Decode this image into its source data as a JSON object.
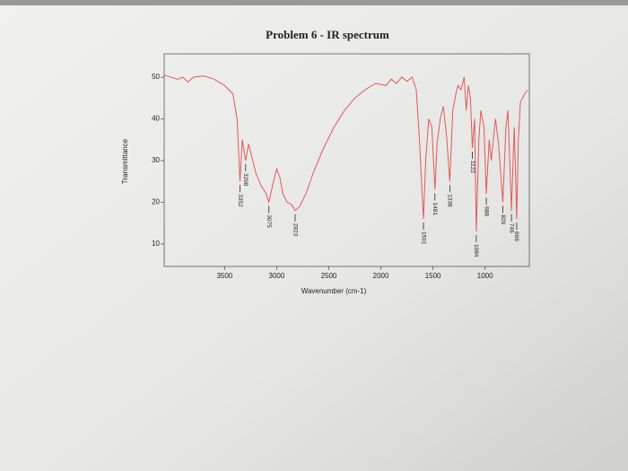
{
  "chart_data": {
    "type": "line",
    "title": "Problem 6 - IR spectrum",
    "xlabel": "Wavenumber (cm-1)",
    "ylabel": "Transmittance",
    "color": "#e05a5a",
    "xlim": [
      4080,
      575
    ],
    "xticks": [
      3500,
      3000,
      2500,
      2000,
      1500,
      1000
    ],
    "ylim": [
      4.6,
      55.6
    ],
    "yticks": [
      10,
      20,
      30,
      40,
      50
    ],
    "x": [
      4080,
      3950,
      3900,
      3850,
      3800,
      3700,
      3600,
      3500,
      3420,
      3380,
      3352,
      3330,
      3298,
      3270,
      3230,
      3200,
      3150,
      3100,
      3075,
      3040,
      3000,
      2970,
      2940,
      2900,
      2860,
      2823,
      2780,
      2720,
      2650,
      2550,
      2450,
      2350,
      2250,
      2150,
      2050,
      1950,
      1900,
      1850,
      1800,
      1750,
      1700,
      1660,
      1630,
      1591,
      1570,
      1540,
      1510,
      1481,
      1460,
      1430,
      1400,
      1370,
      1338,
      1310,
      1280,
      1260,
      1230,
      1200,
      1180,
      1160,
      1140,
      1122,
      1100,
      1084,
      1060,
      1040,
      1010,
      988,
      960,
      940,
      900,
      870,
      829,
      800,
      780,
      746,
      720,
      710,
      696,
      680,
      660,
      620,
      590
    ],
    "values": [
      50.5,
      49.5,
      50,
      48.8,
      50,
      50.3,
      49.5,
      48,
      46,
      40,
      25,
      35,
      30,
      34,
      30,
      27,
      24,
      22,
      20,
      24,
      28,
      26,
      22,
      20,
      19.5,
      18,
      19,
      22,
      27,
      33,
      38,
      42,
      45,
      47,
      48.5,
      48,
      49.5,
      48.5,
      50,
      49,
      50,
      47,
      35,
      16,
      30,
      40,
      38,
      23,
      34,
      40,
      43,
      36,
      25,
      42,
      46,
      48,
      47,
      50,
      42,
      48,
      45,
      33,
      40,
      13,
      35,
      42,
      38,
      22,
      35,
      30,
      40,
      34,
      20,
      38,
      42,
      18,
      38,
      30,
      16,
      35,
      44,
      46,
      47
    ],
    "annotations": [
      {
        "text": "3352",
        "x": 3352
      },
      {
        "text": "3298",
        "x": 3298
      },
      {
        "text": "3075",
        "x": 3075
      },
      {
        "text": "2823",
        "x": 2823
      },
      {
        "text": "1591",
        "x": 1591
      },
      {
        "text": "1481",
        "x": 1481
      },
      {
        "text": "1338",
        "x": 1338
      },
      {
        "text": "1122",
        "x": 1122
      },
      {
        "text": "1084",
        "x": 1084
      },
      {
        "text": "988",
        "x": 988
      },
      {
        "text": "829",
        "x": 829
      },
      {
        "text": "746",
        "x": 746
      },
      {
        "text": "696",
        "x": 696
      }
    ]
  }
}
